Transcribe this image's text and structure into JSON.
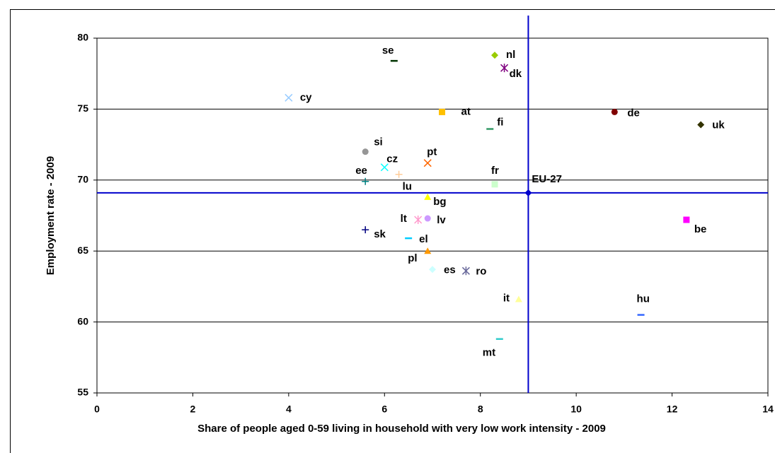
{
  "chart_data": {
    "type": "scatter",
    "xlabel": "Share of people aged 0-59 living in household with very low work intensity - 2009",
    "ylabel": "Employment rate - 2009",
    "xlim": [
      0,
      14
    ],
    "xticks": [
      0,
      2,
      4,
      6,
      8,
      10,
      12,
      14
    ],
    "ylim": [
      55,
      80
    ],
    "yticks": [
      55,
      60,
      65,
      70,
      75,
      80
    ],
    "grid": true,
    "reference_point": 26,
    "points": [
      {
        "name": "cy",
        "x": 4.0,
        "y": 75.8,
        "color": "#99ccff",
        "marker": "x"
      },
      {
        "name": "se",
        "x": 6.2,
        "y": 78.4,
        "color": "#003300",
        "marker": "dash"
      },
      {
        "name": "nl",
        "x": 8.3,
        "y": 78.8,
        "color": "#99cc00",
        "marker": "diamond"
      },
      {
        "name": "dk",
        "x": 8.5,
        "y": 77.9,
        "color": "#800080",
        "marker": "star"
      },
      {
        "name": "at",
        "x": 7.2,
        "y": 74.8,
        "color": "#ffc000",
        "marker": "square"
      },
      {
        "name": "de",
        "x": 10.8,
        "y": 74.8,
        "color": "#800000",
        "marker": "circle"
      },
      {
        "name": "uk",
        "x": 12.6,
        "y": 73.9,
        "color": "#333300",
        "marker": "diamond"
      },
      {
        "name": "fi",
        "x": 8.2,
        "y": 73.6,
        "color": "#339966",
        "marker": "dash"
      },
      {
        "name": "si",
        "x": 5.6,
        "y": 72.0,
        "color": "#969696",
        "marker": "circle"
      },
      {
        "name": "pt",
        "x": 6.9,
        "y": 71.2,
        "color": "#ff6600",
        "marker": "x"
      },
      {
        "name": "cz",
        "x": 6.0,
        "y": 70.9,
        "color": "#00ffff",
        "marker": "x"
      },
      {
        "name": "lu",
        "x": 6.3,
        "y": 70.4,
        "color": "#ffcc99",
        "marker": "plus"
      },
      {
        "name": "ee",
        "x": 5.6,
        "y": 69.9,
        "color": "#008080",
        "marker": "plus"
      },
      {
        "name": "fr",
        "x": 8.3,
        "y": 69.7,
        "color": "#ccffcc",
        "marker": "square"
      },
      {
        "name": "bg",
        "x": 6.9,
        "y": 68.8,
        "color": "#ffff00",
        "marker": "triangle"
      },
      {
        "name": "lt",
        "x": 6.7,
        "y": 67.2,
        "color": "#ff99cc",
        "marker": "star"
      },
      {
        "name": "lv",
        "x": 6.9,
        "y": 67.3,
        "color": "#cc99ff",
        "marker": "circle"
      },
      {
        "name": "be",
        "x": 12.3,
        "y": 67.2,
        "color": "#ff00ff",
        "marker": "square"
      },
      {
        "name": "sk",
        "x": 5.6,
        "y": 66.5,
        "color": "#000080",
        "marker": "plus"
      },
      {
        "name": "el",
        "x": 6.5,
        "y": 65.9,
        "color": "#00ccff",
        "marker": "dash"
      },
      {
        "name": "pl",
        "x": 6.9,
        "y": 65.0,
        "color": "#ff9900",
        "marker": "triangle"
      },
      {
        "name": "es",
        "x": 7.0,
        "y": 63.7,
        "color": "#ccffff",
        "marker": "diamond"
      },
      {
        "name": "ro",
        "x": 7.7,
        "y": 63.6,
        "color": "#666699",
        "marker": "star"
      },
      {
        "name": "it",
        "x": 8.8,
        "y": 61.6,
        "color": "#ffff99",
        "marker": "triangle"
      },
      {
        "name": "hu",
        "x": 11.35,
        "y": 60.5,
        "color": "#3366ff",
        "marker": "dash"
      },
      {
        "name": "mt",
        "x": 8.4,
        "y": 58.8,
        "color": "#33cccc",
        "marker": "dash"
      },
      {
        "name": "EU-27",
        "x": 9.0,
        "y": 69.1,
        "color": "#0000cc",
        "marker": "diamond"
      }
    ]
  }
}
